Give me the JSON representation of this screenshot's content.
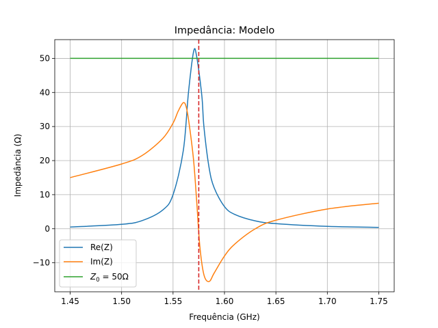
{
  "chart_data": {
    "type": "line",
    "title": "Impedância: Modelo",
    "xlabel": "Frequência (GHz)",
    "ylabel": "Impedância (Ω)",
    "xlim": [
      1.435,
      1.765
    ],
    "ylim": [
      -18.5,
      55.5
    ],
    "grid": true,
    "legend_position": "lower-left",
    "x_ticks": [
      "1.45",
      "1.50",
      "1.55",
      "1.60",
      "1.65",
      "1.70",
      "1.75"
    ],
    "y_ticks": [
      "−10",
      "0",
      "10",
      "20",
      "30",
      "40",
      "50"
    ],
    "x_tick_values": [
      1.45,
      1.5,
      1.55,
      1.6,
      1.65,
      1.7,
      1.75
    ],
    "y_tick_values": [
      -10,
      0,
      10,
      20,
      30,
      40,
      50
    ],
    "reference_line": {
      "x": 1.575,
      "color": "#d62728",
      "style": "dashed"
    },
    "series": [
      {
        "name": "Re(Z)",
        "color": "#1f77b4",
        "x": [
          1.45,
          1.5,
          1.52,
          1.54,
          1.55,
          1.56,
          1.565,
          1.57,
          1.573,
          1.578,
          1.58,
          1.585,
          1.59,
          1.6,
          1.61,
          1.63,
          1.65,
          1.7,
          1.75
        ],
        "y": [
          0.5,
          1.3,
          2.4,
          5.5,
          10.0,
          23.0,
          40.0,
          52.0,
          50.5,
          39.0,
          30.0,
          18.0,
          12.0,
          6.5,
          4.2,
          2.3,
          1.5,
          0.7,
          0.4
        ]
      },
      {
        "name": "Im(Z)",
        "color": "#ff7f0e",
        "x": [
          1.45,
          1.5,
          1.52,
          1.54,
          1.55,
          1.555,
          1.56,
          1.563,
          1.566,
          1.57,
          1.573,
          1.576,
          1.58,
          1.585,
          1.59,
          1.6,
          1.61,
          1.63,
          1.65,
          1.7,
          1.75
        ],
        "y": [
          15.0,
          19.0,
          21.5,
          26.5,
          31.0,
          34.5,
          37.0,
          35.5,
          30.0,
          20.0,
          8.0,
          -5.0,
          -13.5,
          -15.5,
          -13.0,
          -8.0,
          -4.5,
          0.0,
          2.5,
          5.8,
          7.5
        ]
      },
      {
        "name": "Z0 = 50Ω",
        "color": "#2ca02c",
        "x": [
          1.45,
          1.75
        ],
        "y": [
          50,
          50
        ]
      }
    ]
  },
  "legend": {
    "re_label": "Re(Z)",
    "im_label": "Im(Z)",
    "z0_prefix": "Z",
    "z0_sub": "0",
    "z0_suffix": " = 50Ω"
  }
}
